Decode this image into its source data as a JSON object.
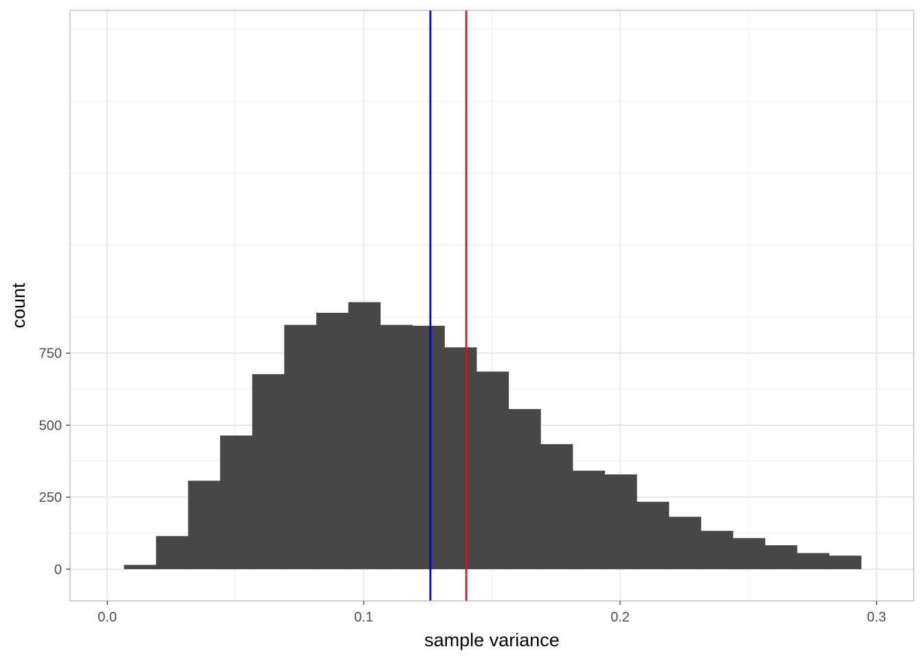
{
  "chart_data": {
    "type": "bar",
    "subtype": "histogram",
    "title": "",
    "xlabel": "sample variance",
    "ylabel": "count",
    "xlim": [
      -0.0145,
      0.3145
    ],
    "ylim": [
      -110,
      1940
    ],
    "x_ticks": [
      0.0,
      0.1,
      0.2,
      0.3
    ],
    "x_tick_labels": [
      "0.0",
      "0.1",
      "0.2",
      "0.3"
    ],
    "y_ticks": [
      0,
      250,
      500,
      750
    ],
    "y_tick_labels": [
      "0",
      "250",
      "500",
      "750"
    ],
    "grid": true,
    "bin_width": 0.0125,
    "bins": [
      {
        "x0": 0.0065,
        "x1": 0.019,
        "count": 15
      },
      {
        "x0": 0.019,
        "x1": 0.0315,
        "count": 115
      },
      {
        "x0": 0.0315,
        "x1": 0.044,
        "count": 307
      },
      {
        "x0": 0.044,
        "x1": 0.0565,
        "count": 464
      },
      {
        "x0": 0.0565,
        "x1": 0.069,
        "count": 677
      },
      {
        "x0": 0.069,
        "x1": 0.0815,
        "count": 848
      },
      {
        "x0": 0.0815,
        "x1": 0.094,
        "count": 890
      },
      {
        "x0": 0.094,
        "x1": 0.1065,
        "count": 927
      },
      {
        "x0": 0.1065,
        "x1": 0.119,
        "count": 848
      },
      {
        "x0": 0.119,
        "x1": 0.1315,
        "count": 845
      },
      {
        "x0": 0.1315,
        "x1": 0.144,
        "count": 770
      },
      {
        "x0": 0.144,
        "x1": 0.1565,
        "count": 686
      },
      {
        "x0": 0.1565,
        "x1": 0.169,
        "count": 556
      },
      {
        "x0": 0.169,
        "x1": 0.1815,
        "count": 434
      },
      {
        "x0": 0.1815,
        "x1": 0.194,
        "count": 342
      },
      {
        "x0": 0.194,
        "x1": 0.2065,
        "count": 329
      },
      {
        "x0": 0.2065,
        "x1": 0.219,
        "count": 234
      },
      {
        "x0": 0.219,
        "x1": 0.2315,
        "count": 182
      },
      {
        "x0": 0.2315,
        "x1": 0.244,
        "count": 133
      },
      {
        "x0": 0.244,
        "x1": 0.2565,
        "count": 108
      },
      {
        "x0": 0.2565,
        "x1": 0.269,
        "count": 83
      },
      {
        "x0": 0.269,
        "x1": 0.2815,
        "count": 56
      },
      {
        "x0": 0.2815,
        "x1": 0.294,
        "count": 47
      }
    ],
    "vlines": [
      {
        "x": 0.126,
        "color": "#0000cc"
      },
      {
        "x": 0.14,
        "color": "#e0101a"
      }
    ],
    "colors": {
      "bar_fill": "#474747",
      "panel_border": "#b3b3b3",
      "grid_major": "#dedede",
      "grid_minor": "#efefef"
    }
  }
}
